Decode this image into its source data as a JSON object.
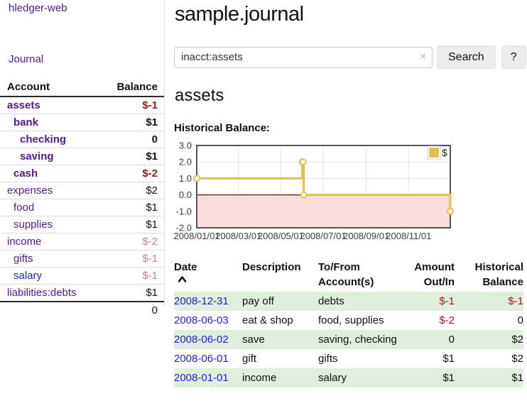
{
  "colors": {
    "link_purple": "#551a8b",
    "link_blue": "#2222dd",
    "negative_strong": "#9e1a1a",
    "negative_dim": "#c98383",
    "row_shaded_green": "#e0eedd",
    "series_gold": "#e6bf4a",
    "series_gold_dark": "#c7a035",
    "negative_region_pink": "#fbdcdc",
    "zero_line_red": "#8b0000",
    "plot_border": "#545454",
    "grid": "#e4e4e4"
  },
  "sidebar": {
    "app_title": "hledger-web",
    "journal_link": "Journal",
    "account_header": "Account",
    "balance_header": "Balance",
    "accounts": [
      {
        "label": "assets",
        "depth": 1,
        "bold": true,
        "link_color": "purple",
        "balance": "$-1",
        "balance_style": "negstrong"
      },
      {
        "label": "bank",
        "depth": 2,
        "bold": true,
        "link_color": "purple",
        "balance": "$1",
        "balance_style": "plain"
      },
      {
        "label": "checking",
        "depth": 3,
        "bold": true,
        "link_color": "purple",
        "balance": "0",
        "balance_style": "plain"
      },
      {
        "label": "saving",
        "depth": 3,
        "bold": true,
        "link_color": "purple",
        "balance": "$1",
        "balance_style": "plain"
      },
      {
        "label": "cash",
        "depth": 2,
        "bold": true,
        "link_color": "purple",
        "balance": "$-2",
        "balance_style": "negstrong"
      },
      {
        "label": "expenses",
        "depth": 1,
        "bold": false,
        "link_color": "purple",
        "balance": "$2",
        "balance_style": "plain"
      },
      {
        "label": "food",
        "depth": 2,
        "bold": false,
        "link_color": "purple",
        "balance": "$1",
        "balance_style": "plain"
      },
      {
        "label": "supplies",
        "depth": 2,
        "bold": false,
        "link_color": "purple",
        "balance": "$1",
        "balance_style": "plain"
      },
      {
        "label": "income",
        "depth": 1,
        "bold": false,
        "link_color": "purple",
        "balance": "$-2",
        "balance_style": "negdim"
      },
      {
        "label": "gifts",
        "depth": 2,
        "bold": false,
        "link_color": "purple",
        "balance": "$-1",
        "balance_style": "negdim"
      },
      {
        "label": "salary",
        "depth": 2,
        "bold": false,
        "link_color": "blue",
        "balance": "$-1",
        "balance_style": "negdim"
      },
      {
        "label": "liabilities:debts",
        "depth": 1,
        "bold": false,
        "link_color": "purple",
        "balance": "$1",
        "balance_style": "plain"
      }
    ],
    "total": "0"
  },
  "header": {
    "title": "sample.journal"
  },
  "search": {
    "value": "inacct:assets",
    "clear_icon": "×",
    "search_button": "Search",
    "help_button": "?"
  },
  "register": {
    "heading": "assets",
    "chart_label": "Historical Balance:",
    "headers": {
      "date": [
        "Date"
      ],
      "description": [
        "Description"
      ],
      "accounts": [
        "To/From",
        "Account(s)"
      ],
      "amount": [
        "Amount",
        "Out/In"
      ],
      "balance": [
        "Historical",
        "Balance"
      ]
    },
    "sort": {
      "column": "date",
      "direction": "ascending"
    },
    "rows": [
      {
        "date": "2008-12-31",
        "description": "pay off",
        "accounts": "debts",
        "amount": "$-1",
        "amount_style": "negstrong",
        "balance": "$-1",
        "balance_style": "negstrong",
        "shaded": true
      },
      {
        "date": "2008-06-03",
        "description": "eat & shop",
        "accounts": "food, supplies",
        "amount": "$-2",
        "amount_style": "negstrong",
        "balance": "0",
        "balance_style": "plain",
        "shaded": false
      },
      {
        "date": "2008-06-02",
        "description": "save",
        "accounts": "saving, checking",
        "amount": "0",
        "amount_style": "plain",
        "balance": "$2",
        "balance_style": "plain",
        "shaded": true
      },
      {
        "date": "2008-06-01",
        "description": "gift",
        "accounts": "gifts",
        "amount": "$1",
        "amount_style": "plain",
        "balance": "$2",
        "balance_style": "plain",
        "shaded": false
      },
      {
        "date": "2008-01-01",
        "description": "income",
        "accounts": "salary",
        "amount": "$1",
        "amount_style": "plain",
        "balance": "$1",
        "balance_style": "plain",
        "shaded": true
      }
    ]
  },
  "chart_data": {
    "type": "line",
    "step": true,
    "title": "Historical Balance:",
    "x_range": [
      "2008-01-01",
      "2008-12-31"
    ],
    "ylim": [
      -2.0,
      3.0
    ],
    "yticks": [
      3.0,
      2.0,
      1.0,
      0.0,
      -1.0,
      -2.0
    ],
    "ytick_labels": [
      "3.0",
      "2.0",
      "1.0",
      "0.0",
      "-1.0",
      "-2.0"
    ],
    "xticks": [
      {
        "date": "2008-01-01",
        "label": "2008/01/01"
      },
      {
        "date": "2008-03-01",
        "label": "2008/03/01"
      },
      {
        "date": "2008-05-01",
        "label": "2008/05/01"
      },
      {
        "date": "2008-07-01",
        "label": "2008/07/01"
      },
      {
        "date": "2008-09-01",
        "label": "2008/09/01"
      },
      {
        "date": "2008-11-01",
        "label": "2008/11/01"
      }
    ],
    "grid": true,
    "legend": {
      "position": "top-right",
      "entries": [
        {
          "label": "$",
          "color": "#e6bf4a"
        }
      ]
    },
    "series": [
      {
        "name": "$",
        "color": "#e6bf4a",
        "points": [
          {
            "date": "2008-01-01",
            "value": 1
          },
          {
            "date": "2008-06-01",
            "value": 2
          },
          {
            "date": "2008-06-02",
            "value": 2
          },
          {
            "date": "2008-06-03",
            "value": 0
          },
          {
            "date": "2008-12-31",
            "value": -1
          }
        ]
      }
    ]
  }
}
